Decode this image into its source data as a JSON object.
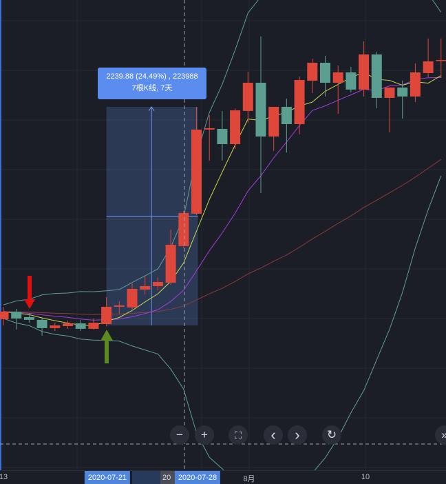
{
  "chart_data": {
    "type": "candlestick",
    "title": "",
    "ylim": [
      7662,
      12481
    ],
    "up_color": "#e0473b",
    "down_color": "#5c9e8f",
    "x_tick_labels": [
      "13",
      "8月",
      "10"
    ],
    "candles": [
      {
        "o": 9210,
        "h": 9337,
        "l": 9146,
        "c": 9287
      },
      {
        "o": 9287,
        "h": 9316,
        "l": 9104,
        "c": 9217
      },
      {
        "o": 9231,
        "h": 9266,
        "l": 9174,
        "c": 9203
      },
      {
        "o": 9203,
        "h": 9231,
        "l": 9040,
        "c": 9118
      },
      {
        "o": 9118,
        "h": 9174,
        "l": 9089,
        "c": 9146
      },
      {
        "o": 9139,
        "h": 9195,
        "l": 9111,
        "c": 9167
      },
      {
        "o": 9167,
        "h": 9203,
        "l": 9089,
        "c": 9111
      },
      {
        "o": 9111,
        "h": 9217,
        "l": 9104,
        "c": 9174
      },
      {
        "o": 9160,
        "h": 9436,
        "l": 9139,
        "c": 9337
      },
      {
        "o": 9337,
        "h": 9393,
        "l": 9266,
        "c": 9351
      },
      {
        "o": 9330,
        "h": 9577,
        "l": 9309,
        "c": 9521
      },
      {
        "o": 9513,
        "h": 9655,
        "l": 9464,
        "c": 9549
      },
      {
        "o": 9549,
        "h": 9634,
        "l": 9506,
        "c": 9591
      },
      {
        "o": 9584,
        "h": 10128,
        "l": 9563,
        "c": 9973
      },
      {
        "o": 9959,
        "h": 10319,
        "l": 9937,
        "c": 10298
      },
      {
        "o": 10291,
        "h": 11386,
        "l": 10277,
        "c": 11153
      },
      {
        "o": 11153,
        "h": 11301,
        "l": 10835,
        "c": 11167
      },
      {
        "o": 11160,
        "h": 11344,
        "l": 10835,
        "c": 11004
      },
      {
        "o": 11004,
        "h": 11372,
        "l": 10955,
        "c": 11350
      },
      {
        "o": 11344,
        "h": 11746,
        "l": 11223,
        "c": 11633
      },
      {
        "o": 11633,
        "h": 12107,
        "l": 10503,
        "c": 11082
      },
      {
        "o": 11082,
        "h": 11386,
        "l": 10934,
        "c": 11386
      },
      {
        "o": 11386,
        "h": 11471,
        "l": 10918,
        "c": 11209
      },
      {
        "o": 11209,
        "h": 11697,
        "l": 11103,
        "c": 11661
      },
      {
        "o": 11654,
        "h": 11880,
        "l": 11527,
        "c": 11838
      },
      {
        "o": 11838,
        "h": 11909,
        "l": 11492,
        "c": 11633
      },
      {
        "o": 11633,
        "h": 11810,
        "l": 11315,
        "c": 11739
      },
      {
        "o": 11739,
        "h": 11796,
        "l": 11534,
        "c": 11563
      },
      {
        "o": 11563,
        "h": 12057,
        "l": 11492,
        "c": 11923
      },
      {
        "o": 11923,
        "h": 11951,
        "l": 11372,
        "c": 11478
      },
      {
        "o": 11478,
        "h": 11584,
        "l": 11124,
        "c": 11584
      },
      {
        "o": 11584,
        "h": 11655,
        "l": 11266,
        "c": 11492
      },
      {
        "o": 11492,
        "h": 11831,
        "l": 11435,
        "c": 11739
      },
      {
        "o": 11732,
        "h": 12087,
        "l": 11690,
        "c": 11852
      },
      {
        "o": 11859,
        "h": 12087,
        "l": 11683,
        "c": 11866
      }
    ],
    "indicators": {
      "ma_short_color": "#c8d64a",
      "ma_mid_color": "#a23fd8",
      "ma_long_color": "#8a3c3c",
      "bollinger_color": "#5f9e95"
    },
    "measure": {
      "from_date": "2020-07-21",
      "to_date": "2020-07-28",
      "from_price": 9146,
      "to_price": 11386,
      "line1": "2239.88 (24.49%) , 223988",
      "line2": "7根K线, 7天"
    },
    "annotations": {
      "red_arrow_color": "#e01010",
      "green_arrow_color": "#5c8a1e"
    }
  },
  "axis": {
    "date_left": "2020-07-21",
    "date_partial": "20",
    "date_right": "2020-07-28"
  },
  "toolbar": {
    "zoom_out": "−",
    "zoom_in": "+",
    "fullscreen": "⛶",
    "prev": "‹",
    "next": "›",
    "reset": "↻",
    "more": "»"
  }
}
